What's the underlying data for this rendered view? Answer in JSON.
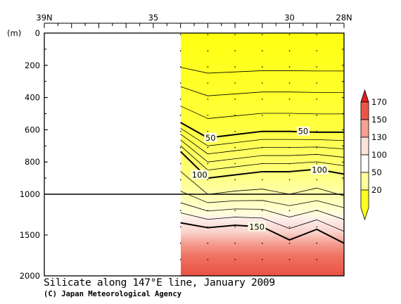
{
  "chart_data": {
    "type": "heatmap",
    "title": "Silicate along 147°E line, January 2009",
    "credit": "(C) Japan Meteorological Agency",
    "ylabel": "(m)",
    "x_axis": {
      "range": [
        39,
        28
      ],
      "ticks": [
        {
          "value": 39,
          "label": "39N"
        },
        {
          "value": 35,
          "label": "35"
        },
        {
          "value": 30,
          "label": "30"
        },
        {
          "value": 28,
          "label": "28N"
        }
      ]
    },
    "y_axis": {
      "upper": {
        "range": [
          0,
          1000
        ],
        "ticks": [
          "0",
          "200",
          "400",
          "600",
          "800",
          "1000"
        ]
      },
      "lower": {
        "range": [
          1000,
          2000
        ],
        "ticks": [
          "1500",
          "2000"
        ]
      }
    },
    "stations_lat": [
      34.0,
      33.0,
      32.0,
      31.0,
      30.0,
      29.0,
      28.0
    ],
    "contour_interval": 10,
    "contours": [
      {
        "level": 50,
        "labeled": true,
        "depths": [
          555,
          650,
          630,
          610,
          610,
          615,
          615
        ]
      },
      {
        "level": 100,
        "labeled": true,
        "depths": [
          735,
          900,
          880,
          860,
          860,
          845,
          875
        ]
      },
      {
        "level": 150,
        "labeled": true,
        "depths": [
          1350,
          1410,
          1380,
          1400,
          1560,
          1430,
          1600
        ]
      }
    ],
    "contour_labels": [
      {
        "text": "50",
        "lat": 32.9,
        "depth": 650
      },
      {
        "text": "50",
        "lat": 29.5,
        "depth": 610
      },
      {
        "text": "100",
        "lat": 33.3,
        "depth": 880
      },
      {
        "text": "100",
        "lat": 28.9,
        "depth": 850
      },
      {
        "text": "150",
        "lat": 31.2,
        "depth": 1400
      }
    ],
    "colorbar": {
      "levels": [
        "20",
        "50",
        "100",
        "130",
        "150",
        "170"
      ],
      "colors": [
        "#ffff1e",
        "#ffff9b",
        "#ffffff",
        "#fde2dc",
        "#f5a090",
        "#ec5646",
        "#e02020"
      ]
    }
  }
}
